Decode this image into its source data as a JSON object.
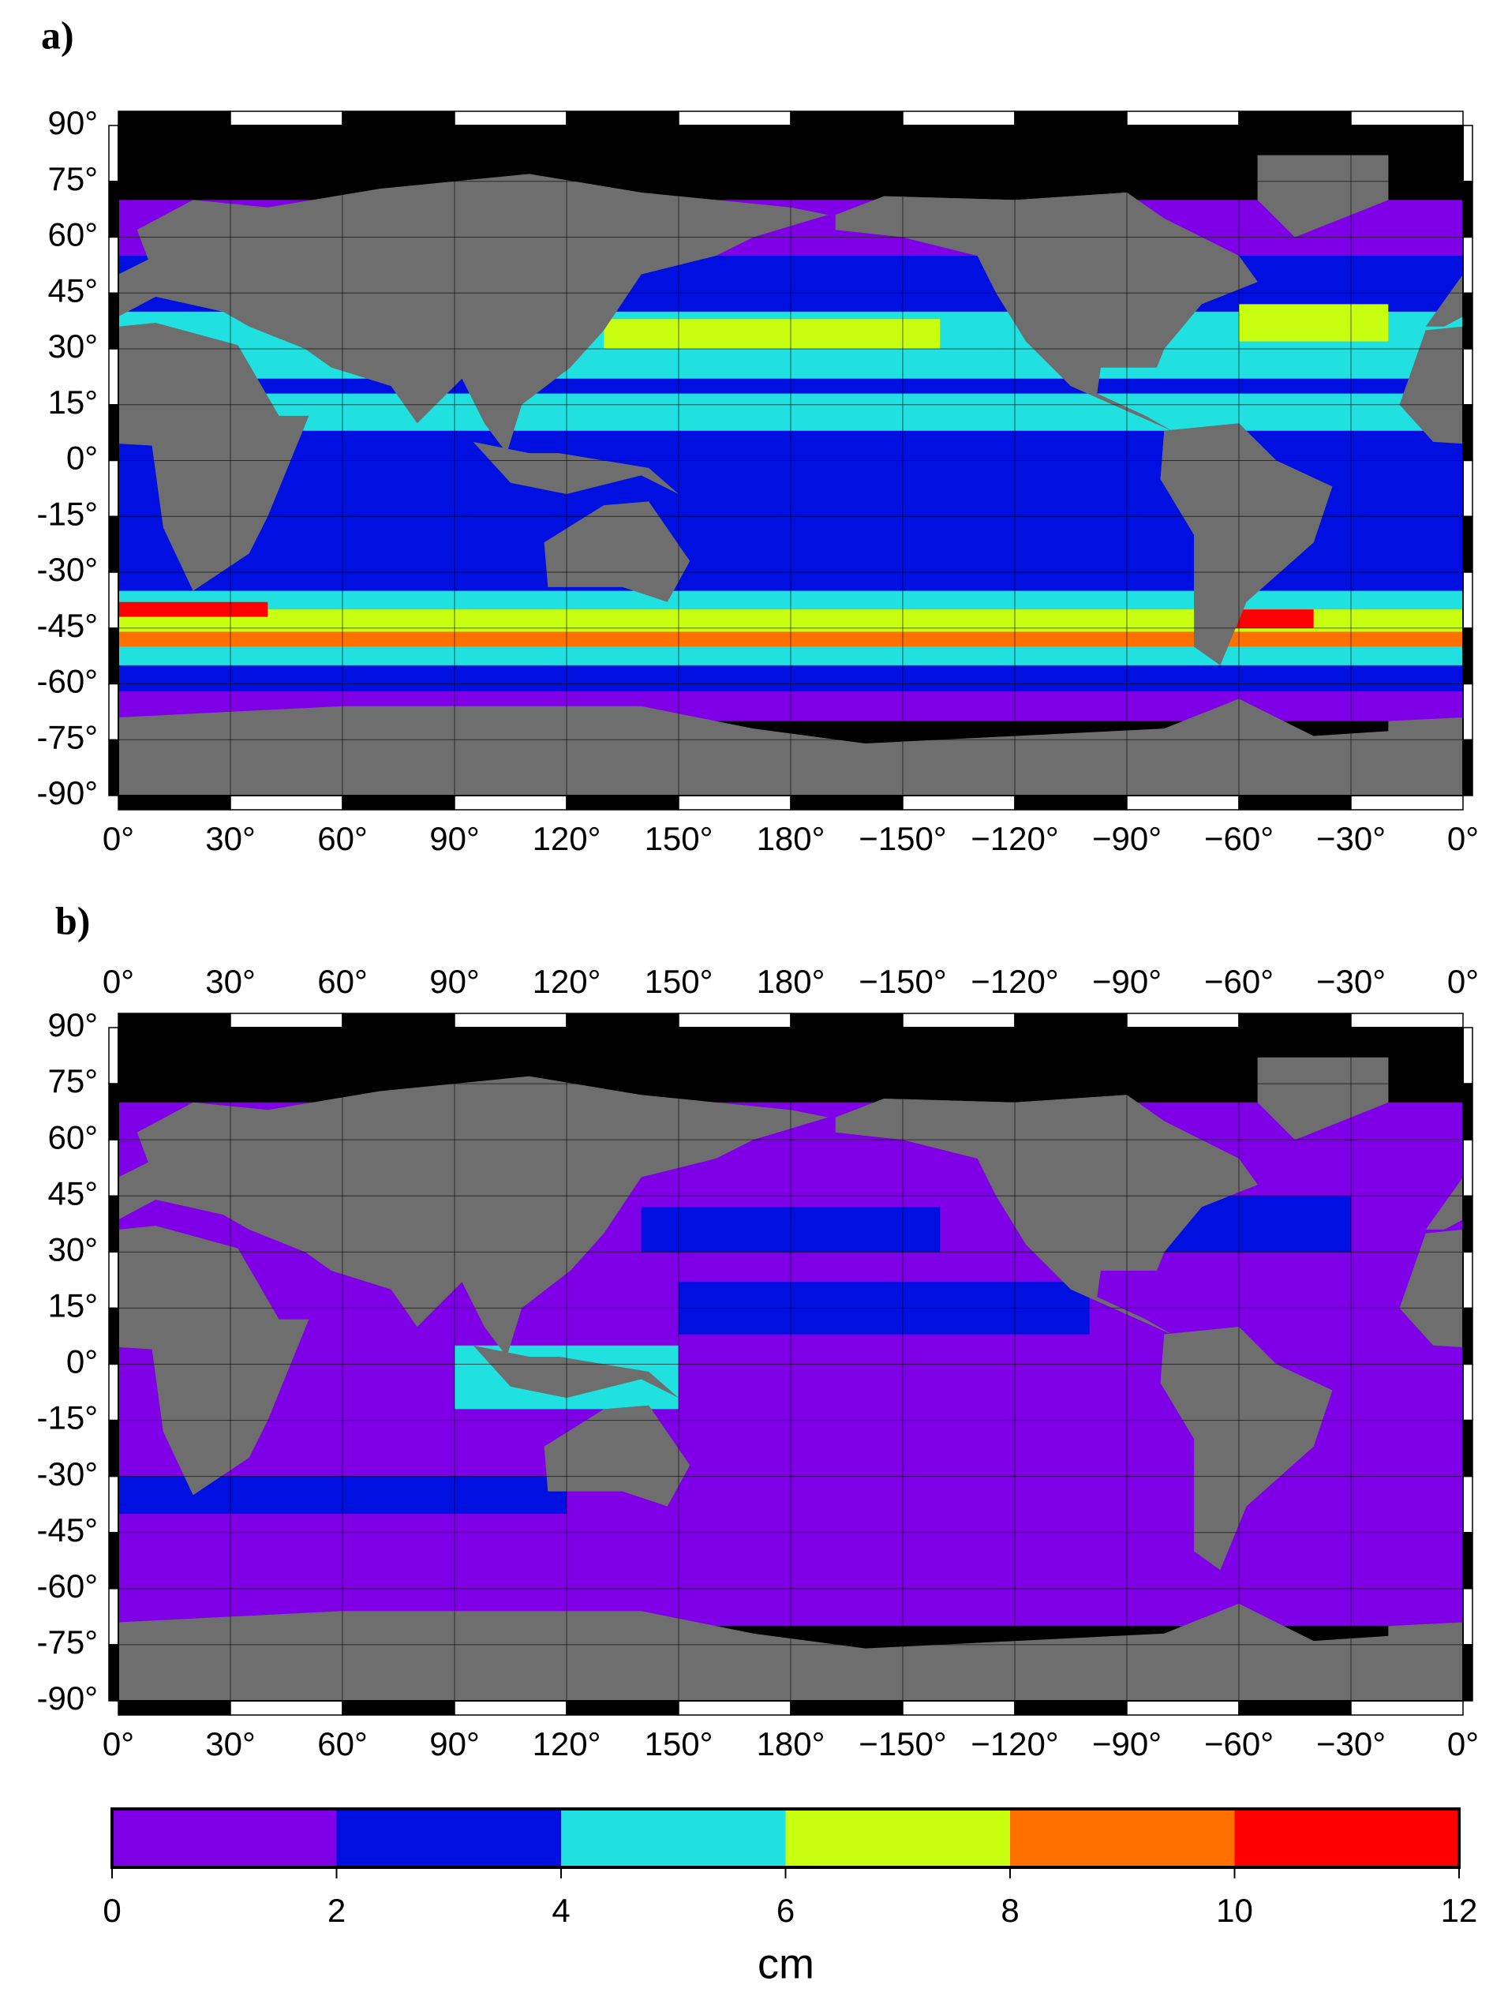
{
  "panels": [
    {
      "label": "a)"
    },
    {
      "label": "b)"
    }
  ],
  "lon_ticks": [
    {
      "value": 0,
      "label": "0°"
    },
    {
      "value": 30,
      "label": "30°"
    },
    {
      "value": 60,
      "label": "60°"
    },
    {
      "value": 90,
      "label": "90°"
    },
    {
      "value": 120,
      "label": "120°"
    },
    {
      "value": 150,
      "label": "150°"
    },
    {
      "value": 180,
      "label": "180°"
    },
    {
      "value": -150,
      "label": "−150°"
    },
    {
      "value": -120,
      "label": "−120°"
    },
    {
      "value": -90,
      "label": "−90°"
    },
    {
      "value": -60,
      "label": "−60°"
    },
    {
      "value": -30,
      "label": "−30°"
    },
    {
      "value": 0,
      "label": "0°"
    }
  ],
  "lat_ticks": [
    {
      "value": 90,
      "label": "90°"
    },
    {
      "value": 75,
      "label": "75°"
    },
    {
      "value": 60,
      "label": "60°"
    },
    {
      "value": 45,
      "label": "45°"
    },
    {
      "value": 30,
      "label": "30°"
    },
    {
      "value": 15,
      "label": "15°"
    },
    {
      "value": 0,
      "label": "0°"
    },
    {
      "value": -15,
      "label": "-15°"
    },
    {
      "value": -30,
      "label": "-30°"
    },
    {
      "value": -45,
      "label": "-45°"
    },
    {
      "value": -60,
      "label": "-60°"
    },
    {
      "value": -75,
      "label": "-75°"
    },
    {
      "value": -90,
      "label": "-90°"
    }
  ],
  "colorbar": {
    "bounds": [
      0,
      2,
      4,
      6,
      8,
      10,
      12
    ],
    "colors": [
      "#7f00e6",
      "#0010e0",
      "#20e0e0",
      "#c8ff10",
      "#ff7000",
      "#ff0000"
    ],
    "label": "cm"
  }
}
